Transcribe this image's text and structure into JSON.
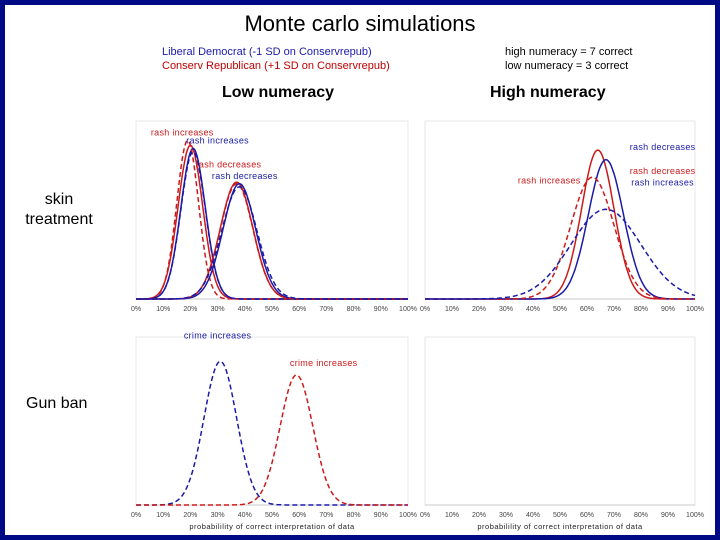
{
  "title": "Monte carlo simulations",
  "legend_left": {
    "line1": "Liberal Democrat (-1 SD on Conservrepub)",
    "line2": "Conserv Republican (+1 SD on Conservrepub)"
  },
  "legend_right": {
    "line1": "high numeracy = 7 correct",
    "line2": "low numeracy =  3 correct"
  },
  "col_headers": {
    "low": "Low numeracy",
    "high": "High numeracy"
  },
  "row_labels": {
    "skin_line1": "skin",
    "skin_line2": "treatment",
    "gun": "Gun ban"
  },
  "colors": {
    "democrat": "#1a1aa8",
    "republican": "#cc1a1a",
    "frame": "#000a84"
  },
  "chart_data": [
    {
      "id": "skin_low",
      "type": "line",
      "x_ticks": [
        "0%",
        "10%",
        "20%",
        "30%",
        "40%",
        "50%",
        "60%",
        "70%",
        "80%",
        "90%",
        "100%"
      ],
      "xlim": [
        0,
        100
      ],
      "series": [
        {
          "party": "republican",
          "style": "solid",
          "mean": 20,
          "sd": 4.5,
          "height": 0.96
        },
        {
          "party": "democrat",
          "style": "solid",
          "mean": 21,
          "sd": 4.5,
          "height": 0.94
        },
        {
          "party": "republican",
          "style": "dashed",
          "mean": 19,
          "sd": 4,
          "height": 0.99
        },
        {
          "party": "democrat",
          "style": "dashed",
          "mean": 21,
          "sd": 4.5,
          "height": 0.92
        },
        {
          "party": "republican",
          "style": "solid",
          "mean": 37,
          "sd": 6,
          "height": 0.73
        },
        {
          "party": "democrat",
          "style": "solid",
          "mean": 38,
          "sd": 6,
          "height": 0.72
        },
        {
          "party": "republican",
          "style": "dashed",
          "mean": 37,
          "sd": 6,
          "height": 0.72
        },
        {
          "party": "democrat",
          "style": "dashed",
          "mean": 38,
          "sd": 6.5,
          "height": 0.7
        }
      ],
      "annotations": [
        {
          "text": "rash increases",
          "color": "#cc1a1a",
          "x": 17,
          "y": 1.02
        },
        {
          "text": "rash increases",
          "color": "#1a1aa8",
          "x": 30,
          "y": 0.97
        },
        {
          "text": "rash decreases",
          "color": "#cc1a1a",
          "x": 34,
          "y": 0.82
        },
        {
          "text": "rash decreases",
          "color": "#1a1aa8",
          "x": 40,
          "y": 0.75
        }
      ]
    },
    {
      "id": "skin_high",
      "type": "line",
      "x_ticks": [
        "0%",
        "10%",
        "20%",
        "30%",
        "40%",
        "50%",
        "60%",
        "70%",
        "80%",
        "90%",
        "100%"
      ],
      "xlim": [
        0,
        100
      ],
      "series": [
        {
          "party": "republican",
          "style": "solid",
          "mean": 64,
          "sd": 6,
          "height": 0.93
        },
        {
          "party": "democrat",
          "style": "solid",
          "mean": 67,
          "sd": 6.5,
          "height": 0.87
        },
        {
          "party": "republican",
          "style": "dashed",
          "mean": 62,
          "sd": 8,
          "height": 0.76
        },
        {
          "party": "democrat",
          "style": "dashed",
          "mean": 67,
          "sd": 13,
          "height": 0.56
        }
      ],
      "annotations": [
        {
          "text": "rash decreases",
          "color": "#1a1aa8",
          "x": 88,
          "y": 0.93
        },
        {
          "text": "rash decreases",
          "color": "#cc1a1a",
          "x": 88,
          "y": 0.78
        },
        {
          "text": "rash increases",
          "color": "#cc1a1a",
          "x": 46,
          "y": 0.72
        },
        {
          "text": "rash increases",
          "color": "#1a1aa8",
          "x": 88,
          "y": 0.71
        }
      ]
    },
    {
      "id": "gun_low",
      "type": "line",
      "x_ticks": [
        "0%",
        "10%",
        "20%",
        "30%",
        "40%",
        "50%",
        "60%",
        "70%",
        "80%",
        "90%",
        "100%"
      ],
      "xlim": [
        0,
        100
      ],
      "xlabel": "probabilility of correct interpretation of data",
      "series": [
        {
          "party": "democrat",
          "style": "dashed",
          "mean": 31,
          "sd": 6,
          "height": 0.95
        },
        {
          "party": "republican",
          "style": "dashed",
          "mean": 59,
          "sd": 6,
          "height": 0.86
        }
      ],
      "annotations": [
        {
          "text": "crime increases",
          "color": "#1a1aa8",
          "x": 30,
          "y": 1.1
        },
        {
          "text": "crime increases",
          "color": "#cc1a1a",
          "x": 69,
          "y": 0.92
        }
      ]
    },
    {
      "id": "gun_high",
      "type": "line",
      "x_ticks": [
        "0%",
        "10%",
        "20%",
        "30%",
        "40%",
        "50%",
        "60%",
        "70%",
        "80%",
        "90%",
        "100%"
      ],
      "xlim": [
        0,
        100
      ],
      "xlabel": "probabilility of correct interpretation of data",
      "series": [],
      "annotations": []
    }
  ]
}
